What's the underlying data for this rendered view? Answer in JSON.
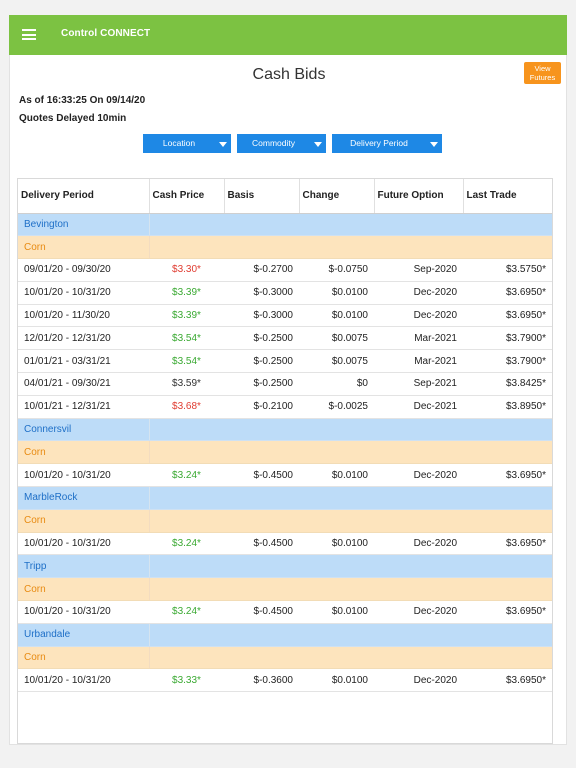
{
  "app": {
    "title": "Control CONNECT"
  },
  "page": {
    "title": "Cash Bids",
    "futures_button": [
      "View",
      "Futures"
    ],
    "as_of": "As of 16:33:25 On 09/14/20",
    "delay_note": "Quotes Delayed 10min"
  },
  "filters": {
    "location": "Location",
    "commodity": "Commodity",
    "delivery_period": "Delivery Period"
  },
  "table": {
    "headers": [
      "Delivery Period",
      "Cash Price",
      "Basis",
      "Change",
      "Future Option",
      "Last Trade"
    ],
    "rows": [
      {
        "type": "location",
        "name": "Bevington"
      },
      {
        "type": "commodity",
        "name": "Corn"
      },
      {
        "type": "bid",
        "period": "09/01/20 - 09/30/20",
        "price": "$3.30*",
        "price_color": "red",
        "basis": "$-0.2700",
        "change": "$-0.0750",
        "option": "Sep-2020",
        "last": "$3.5750*"
      },
      {
        "type": "bid",
        "period": "10/01/20 - 10/31/20",
        "price": "$3.39*",
        "price_color": "green",
        "basis": "$-0.3000",
        "change": "$0.0100",
        "option": "Dec-2020",
        "last": "$3.6950*"
      },
      {
        "type": "bid",
        "period": "10/01/20 - 11/30/20",
        "price": "$3.39*",
        "price_color": "green",
        "basis": "$-0.3000",
        "change": "$0.0100",
        "option": "Dec-2020",
        "last": "$3.6950*"
      },
      {
        "type": "bid",
        "period": "12/01/20 - 12/31/20",
        "price": "$3.54*",
        "price_color": "green",
        "basis": "$-0.2500",
        "change": "$0.0075",
        "option": "Mar-2021",
        "last": "$3.7900*"
      },
      {
        "type": "bid",
        "period": "01/01/21 - 03/31/21",
        "price": "$3.54*",
        "price_color": "green",
        "basis": "$-0.2500",
        "change": "$0.0075",
        "option": "Mar-2021",
        "last": "$3.7900*"
      },
      {
        "type": "bid",
        "period": "04/01/21 - 09/30/21",
        "price": "$3.59*",
        "price_color": "dark",
        "basis": "$-0.2500",
        "change": "$0",
        "option": "Sep-2021",
        "last": "$3.8425*"
      },
      {
        "type": "bid",
        "period": "10/01/21 - 12/31/21",
        "price": "$3.68*",
        "price_color": "red",
        "basis": "$-0.2100",
        "change": "$-0.0025",
        "option": "Dec-2021",
        "last": "$3.8950*"
      },
      {
        "type": "location",
        "name": "Connersvil"
      },
      {
        "type": "commodity",
        "name": "Corn"
      },
      {
        "type": "bid",
        "period": "10/01/20 - 10/31/20",
        "price": "$3.24*",
        "price_color": "green",
        "basis": "$-0.4500",
        "change": "$0.0100",
        "option": "Dec-2020",
        "last": "$3.6950*"
      },
      {
        "type": "location",
        "name": "MarbleRock"
      },
      {
        "type": "commodity",
        "name": "Corn"
      },
      {
        "type": "bid",
        "period": "10/01/20 - 10/31/20",
        "price": "$3.24*",
        "price_color": "green",
        "basis": "$-0.4500",
        "change": "$0.0100",
        "option": "Dec-2020",
        "last": "$3.6950*"
      },
      {
        "type": "location",
        "name": "Tripp"
      },
      {
        "type": "commodity",
        "name": "Corn"
      },
      {
        "type": "bid",
        "period": "10/01/20 - 10/31/20",
        "price": "$3.24*",
        "price_color": "green",
        "basis": "$-0.4500",
        "change": "$0.0100",
        "option": "Dec-2020",
        "last": "$3.6950*"
      },
      {
        "type": "location",
        "name": "Urbandale"
      },
      {
        "type": "commodity",
        "name": "Corn"
      },
      {
        "type": "bid",
        "period": "10/01/20 - 10/31/20",
        "price": "$3.33*",
        "price_color": "green",
        "basis": "$-0.3600",
        "change": "$0.0100",
        "option": "Dec-2020",
        "last": "$3.6950*"
      }
    ]
  },
  "colors": {
    "topbar": "#7cc242",
    "filter_button": "#1e88e5",
    "futures_button": "#f7941d",
    "location_row": "#bddcf8",
    "commodity_row": "#fde4bd",
    "price_up": "#3aa932",
    "price_down": "#e03c31"
  },
  "icons": {
    "menu": "hamburger-menu-icon",
    "dropdown": "caret-down-icon"
  }
}
